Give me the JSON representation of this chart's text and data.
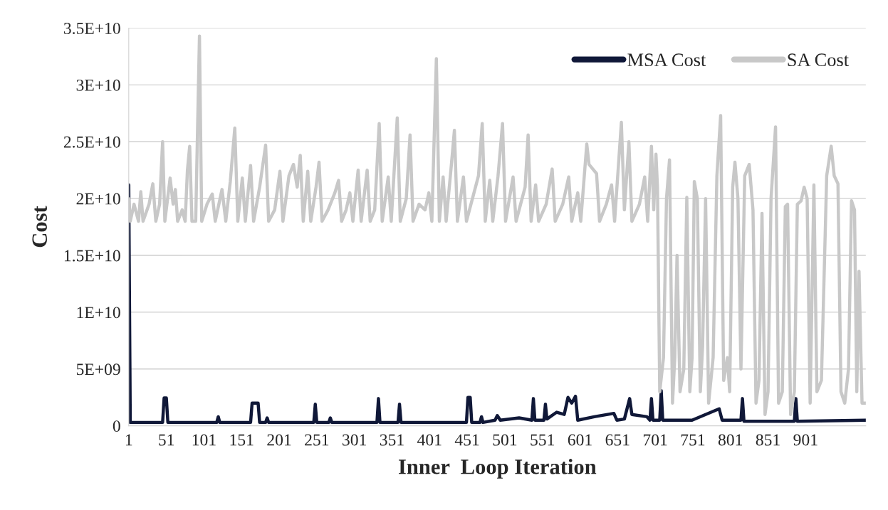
{
  "chart_data": {
    "type": "line",
    "xlabel": "Inner  Loop Iteration",
    "ylabel": "Cost",
    "xlim": [
      1,
      981
    ],
    "xticks": [
      1,
      51,
      101,
      151,
      201,
      251,
      301,
      351,
      401,
      451,
      501,
      551,
      601,
      651,
      701,
      751,
      801,
      851,
      901
    ],
    "ylim": [
      0,
      35000000000.0
    ],
    "yticks": [
      0,
      {
        "value": 5000000000.0,
        "label": "5E+09"
      },
      {
        "value": 10000000000.0,
        "label": "1E+10"
      },
      {
        "value": 15000000000.0,
        "label": "1.5E+10"
      },
      {
        "value": 20000000000.0,
        "label": "2E+10"
      },
      {
        "value": 25000000000.0,
        "label": "2.5E+10"
      },
      {
        "value": 30000000000.0,
        "label": "3E+10"
      },
      {
        "value": 35000000000.0,
        "label": "3.5E+10"
      }
    ],
    "grid": "y",
    "legend": "top right",
    "marker": "none",
    "line_style": "solid",
    "series": [
      {
        "name": "MSA Cost",
        "color": "#101838",
        "x": [
          1,
          3,
          30,
          46,
          48,
          51,
          53,
          118,
          120,
          122,
          163,
          165,
          173,
          175,
          183,
          185,
          187,
          247,
          249,
          251,
          267,
          269,
          271,
          331,
          333,
          335,
          359,
          361,
          363,
          450,
          452,
          455,
          457,
          468,
          470,
          472,
          488,
          491,
          495,
          520,
          537,
          539,
          541,
          553,
          555,
          557,
          570,
          580,
          585,
          590,
          595,
          598,
          620,
          646,
          650,
          660,
          667,
          670,
          690,
          694,
          696,
          698,
          707,
          709,
          711,
          750,
          786,
          790,
          815,
          817,
          819,
          886,
          888,
          890,
          981
        ],
        "values": [
          21200000000.0,
          300000000.0,
          300000000.0,
          300000000.0,
          2450000000.0,
          2450000000.0,
          300000000.0,
          300000000.0,
          800000000.0,
          300000000.0,
          300000000.0,
          2000000000.0,
          2000000000.0,
          300000000.0,
          300000000.0,
          700000000.0,
          300000000.0,
          300000000.0,
          1900000000.0,
          300000000.0,
          300000000.0,
          700000000.0,
          300000000.0,
          300000000.0,
          2400000000.0,
          300000000.0,
          300000000.0,
          1900000000.0,
          300000000.0,
          300000000.0,
          2500000000.0,
          2500000000.0,
          300000000.0,
          300000000.0,
          800000000.0,
          300000000.0,
          500000000.0,
          900000000.0,
          500000000.0,
          700000000.0,
          500000000.0,
          2400000000.0,
          500000000.0,
          500000000.0,
          1900000000.0,
          600000000.0,
          1200000000.0,
          1000000000.0,
          2500000000.0,
          2000000000.0,
          2600000000.0,
          500000000.0,
          800000000.0,
          1100000000.0,
          500000000.0,
          600000000.0,
          2400000000.0,
          1000000000.0,
          800000000.0,
          500000000.0,
          2400000000.0,
          500000000.0,
          500000000.0,
          3100000000.0,
          500000000.0,
          500000000.0,
          1500000000.0,
          500000000.0,
          500000000.0,
          2400000000.0,
          400000000.0,
          400000000.0,
          2400000000.0,
          400000000.0,
          500000000.0
        ]
      },
      {
        "name": "SA Cost",
        "color": "#c8c8c8",
        "x": [
          1,
          3,
          8,
          14,
          17,
          20,
          28,
          33,
          37,
          42,
          46,
          49,
          56,
          60,
          63,
          66,
          72,
          76,
          79,
          82,
          85,
          90,
          95,
          98,
          105,
          112,
          116,
          125,
          130,
          136,
          142,
          146,
          152,
          156,
          163,
          167,
          175,
          183,
          187,
          195,
          202,
          206,
          214,
          220,
          225,
          229,
          233,
          239,
          243,
          250,
          254,
          258,
          266,
          275,
          280,
          284,
          290,
          295,
          299,
          306,
          310,
          318,
          322,
          328,
          334,
          338,
          346,
          350,
          358,
          362,
          370,
          375,
          379,
          387,
          395,
          400,
          404,
          410,
          414,
          419,
          423,
          430,
          434,
          438,
          446,
          450,
          458,
          466,
          471,
          475,
          481,
          485,
          492,
          498,
          502,
          512,
          516,
          528,
          532,
          536,
          542,
          546,
          556,
          564,
          568,
          578,
          586,
          590,
          598,
          602,
          610,
          613,
          618,
          623,
          627,
          636,
          643,
          647,
          656,
          660,
          666,
          670,
          680,
          687,
          691,
          696,
          699,
          702,
          704,
          707,
          712,
          716,
          720,
          724,
          727,
          730,
          734,
          739,
          743,
          747,
          750,
          753,
          757,
          761,
          764,
          768,
          772,
          778,
          783,
          788,
          792,
          797,
          800,
          804,
          807,
          811,
          815,
          820,
          826,
          831,
          835,
          839,
          843,
          847,
          851,
          855,
          861,
          865,
          870,
          874,
          877,
          881,
          886,
          890,
          895,
          899,
          903,
          907,
          912,
          916,
          922,
          929,
          935,
          939,
          944,
          948,
          953,
          958,
          962,
          966,
          969,
          972,
          976,
          981
        ],
        "values": [
          20000000000.0,
          18000000000.0,
          19500000000.0,
          18000000000.0,
          20600000000.0,
          18000000000.0,
          19500000000.0,
          21300000000.0,
          18000000000.0,
          19500000000.0,
          25000000000.0,
          18000000000.0,
          21800000000.0,
          19500000000.0,
          20800000000.0,
          18000000000.0,
          19000000000.0,
          18000000000.0,
          22500000000.0,
          24600000000.0,
          18000000000.0,
          18000000000.0,
          34300000000.0,
          18000000000.0,
          19500000000.0,
          20400000000.0,
          18000000000.0,
          20800000000.0,
          18000000000.0,
          21500000000.0,
          26200000000.0,
          18000000000.0,
          21800000000.0,
          18000000000.0,
          22900000000.0,
          18000000000.0,
          21000000000.0,
          24700000000.0,
          18000000000.0,
          19000000000.0,
          22400000000.0,
          18000000000.0,
          22000000000.0,
          23000000000.0,
          21000000000.0,
          23800000000.0,
          18000000000.0,
          22400000000.0,
          18000000000.0,
          21000000000.0,
          23200000000.0,
          18000000000.0,
          19000000000.0,
          20500000000.0,
          21600000000.0,
          18000000000.0,
          19000000000.0,
          20500000000.0,
          18000000000.0,
          22500000000.0,
          18000000000.0,
          22500000000.0,
          18000000000.0,
          19000000000.0,
          26600000000.0,
          18000000000.0,
          21900000000.0,
          18000000000.0,
          27100000000.0,
          18000000000.0,
          20000000000.0,
          25600000000.0,
          18000000000.0,
          19500000000.0,
          19000000000.0,
          20500000000.0,
          18000000000.0,
          32300000000.0,
          18000000000.0,
          21900000000.0,
          18000000000.0,
          23000000000.0,
          26000000000.0,
          18000000000.0,
          21900000000.0,
          18000000000.0,
          20000000000.0,
          22000000000.0,
          26600000000.0,
          18000000000.0,
          21600000000.0,
          18000000000.0,
          22000000000.0,
          26600000000.0,
          18000000000.0,
          21900000000.0,
          18000000000.0,
          21000000000.0,
          25600000000.0,
          18000000000.0,
          21200000000.0,
          18000000000.0,
          19500000000.0,
          22600000000.0,
          18000000000.0,
          19500000000.0,
          21900000000.0,
          18000000000.0,
          20500000000.0,
          18000000000.0,
          24800000000.0,
          23000000000.0,
          22600000000.0,
          22200000000.0,
          18000000000.0,
          19500000000.0,
          21200000000.0,
          18000000000.0,
          26700000000.0,
          19000000000.0,
          25000000000.0,
          18000000000.0,
          19500000000.0,
          21900000000.0,
          18000000000.0,
          24600000000.0,
          19000000000.0,
          23900000000.0,
          21000000000.0,
          3000000000.0,
          6000000000.0,
          20000000000.0,
          23400000000.0,
          2000000000.0,
          6000000000.0,
          15000000000.0,
          3000000000.0,
          5000000000.0,
          20100000000.0,
          3000000000.0,
          6000000000.0,
          21500000000.0,
          20000000000.0,
          3000000000.0,
          7000000000.0,
          20000000000.0,
          2000000000.0,
          6000000000.0,
          22000000000.0,
          27300000000.0,
          4000000000.0,
          6000000000.0,
          3000000000.0,
          21000000000.0,
          23200000000.0,
          20000000000.0,
          5000000000.0,
          22000000000.0,
          23000000000.0,
          19000000000.0,
          2000000000.0,
          4000000000.0,
          18700000000.0,
          1000000000.0,
          3000000000.0,
          20000000000.0,
          26300000000.0,
          2000000000.0,
          3000000000.0,
          19300000000.0,
          19500000000.0,
          1000000000.0,
          3000000000.0,
          19500000000.0,
          19800000000.0,
          21000000000.0,
          20000000000.0,
          2000000000.0,
          21200000000.0,
          3000000000.0,
          4000000000.0,
          22000000000.0,
          24600000000.0,
          22000000000.0,
          21300000000.0,
          3000000000.0,
          2000000000.0,
          5000000000.0,
          19800000000.0,
          19000000000.0,
          3000000000.0,
          13600000000.0,
          2000000000.0,
          2000000000.0
        ]
      }
    ]
  }
}
